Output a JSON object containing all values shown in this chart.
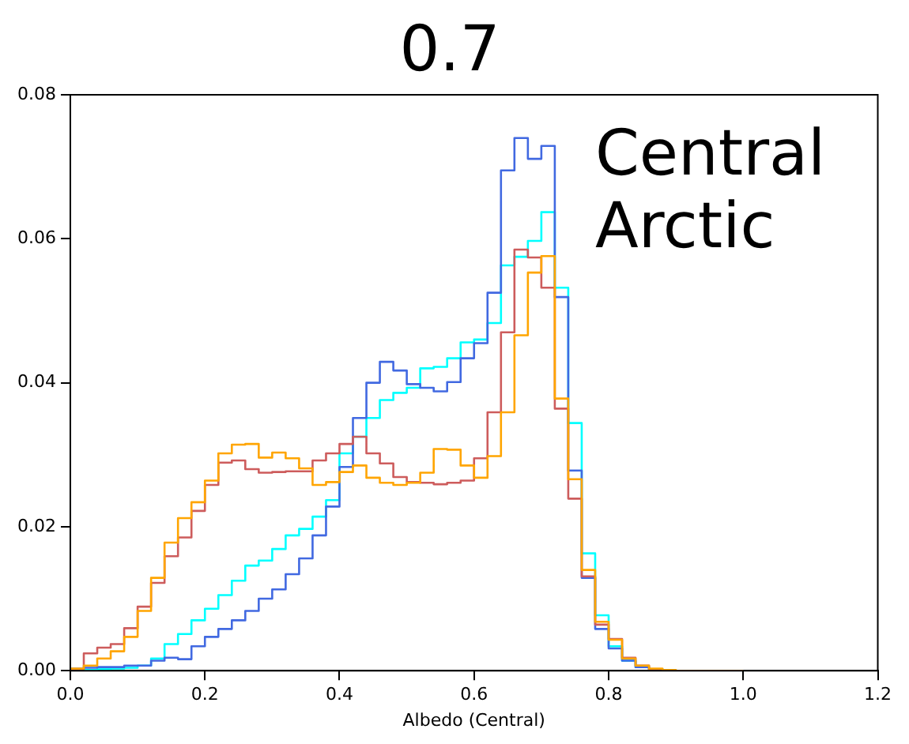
{
  "chart_data": {
    "type": "histogram",
    "title": "0.7",
    "xlabel": "Albedo (Central)",
    "annotations": [
      "Central Arctic"
    ],
    "bins": [
      0,
      0.02,
      0.04,
      0.06,
      0.08,
      0.1,
      0.12,
      0.14,
      0.16,
      0.18,
      0.2,
      0.22,
      0.24,
      0.26,
      0.28,
      0.3,
      0.32,
      0.34,
      0.36,
      0.38,
      0.4,
      0.42,
      0.44,
      0.46,
      0.48,
      0.5,
      0.52,
      0.54,
      0.56,
      0.58,
      0.6,
      0.62,
      0.64,
      0.66,
      0.68,
      0.7,
      0.72,
      0.74,
      0.76,
      0.78,
      0.8,
      0.82,
      0.84,
      0.86,
      0.88,
      0.9,
      0.92,
      0.94,
      0.96,
      0.98,
      1.0
    ],
    "series": [
      {
        "color": "#ffa500",
        "values": [
          0.0003,
          0.0007,
          0.0017,
          0.0027,
          0.0047,
          0.0083,
          0.0129,
          0.0178,
          0.0212,
          0.0234,
          0.0264,
          0.0302,
          0.0314,
          0.0315,
          0.0296,
          0.0303,
          0.0295,
          0.0281,
          0.0258,
          0.0262,
          0.0276,
          0.0285,
          0.0268,
          0.0261,
          0.0258,
          0.0261,
          0.0275,
          0.0308,
          0.0307,
          0.0285,
          0.0268,
          0.0298,
          0.0359,
          0.0466,
          0.0553,
          0.0576,
          0.0378,
          0.0266,
          0.014,
          0.0068,
          0.0043,
          0.0017,
          0.0007,
          0.0003,
          0.0001,
          0,
          0,
          0,
          0,
          0
        ]
      },
      {
        "color": "#cd5c5c",
        "values": [
          0.0002,
          0.0024,
          0.0032,
          0.0037,
          0.0059,
          0.0089,
          0.0122,
          0.0159,
          0.0185,
          0.0222,
          0.0258,
          0.0289,
          0.0292,
          0.028,
          0.0275,
          0.0276,
          0.0277,
          0.0277,
          0.0292,
          0.0302,
          0.0315,
          0.0325,
          0.0302,
          0.0288,
          0.0269,
          0.0262,
          0.0261,
          0.0259,
          0.0261,
          0.0264,
          0.0295,
          0.0359,
          0.047,
          0.0585,
          0.0574,
          0.0532,
          0.0364,
          0.0239,
          0.0131,
          0.0064,
          0.0044,
          0.0018,
          0.0007,
          0.0002,
          0,
          0,
          0,
          0,
          0,
          0
        ]
      },
      {
        "color": "#4169e1",
        "values": [
          0.0003,
          0.0004,
          0.0005,
          0.0005,
          0.0007,
          0.0007,
          0.0014,
          0.0018,
          0.0016,
          0.0034,
          0.0047,
          0.0058,
          0.007,
          0.0083,
          0.01,
          0.0113,
          0.0134,
          0.0156,
          0.0188,
          0.0228,
          0.0283,
          0.0351,
          0.04,
          0.0429,
          0.0417,
          0.0398,
          0.0393,
          0.0388,
          0.0401,
          0.0434,
          0.0455,
          0.0525,
          0.0695,
          0.074,
          0.0711,
          0.0729,
          0.0519,
          0.0278,
          0.0129,
          0.0058,
          0.0031,
          0.0014,
          0.0005,
          0.0002,
          0,
          0,
          0,
          0,
          0,
          0
        ]
      },
      {
        "color": "#00ffff",
        "values": [
          0,
          0.0001,
          0.0002,
          0.0003,
          0.0004,
          0.0007,
          0.0017,
          0.0037,
          0.0051,
          0.007,
          0.0086,
          0.0105,
          0.0125,
          0.0146,
          0.0153,
          0.0169,
          0.0188,
          0.0197,
          0.0214,
          0.0237,
          0.0302,
          0.0325,
          0.0351,
          0.0376,
          0.0386,
          0.0393,
          0.042,
          0.0422,
          0.0434,
          0.0456,
          0.046,
          0.0483,
          0.0563,
          0.0575,
          0.0597,
          0.0637,
          0.0532,
          0.0344,
          0.0163,
          0.0077,
          0.0034,
          0.0014,
          0.0005,
          0.0002,
          0,
          0,
          0,
          0,
          0,
          0
        ]
      }
    ],
    "xlim": [
      0,
      1.2
    ],
    "xticks": [
      {
        "value": 0,
        "label": "0.0"
      },
      0.2,
      0.4,
      0.6,
      0.8,
      {
        "value": 1,
        "label": "1.0"
      },
      1.2
    ],
    "ylim": [
      0,
      0.08
    ],
    "yticks": [
      {
        "value": 0,
        "label": "0.00"
      },
      {
        "value": 0.02,
        "label": "0.02"
      },
      {
        "value": 0.04,
        "label": "0.04"
      },
      {
        "value": 0.06,
        "label": "0.06"
      },
      {
        "value": 0.08,
        "label": "0.08"
      }
    ],
    "grid": false,
    "legend": false
  }
}
